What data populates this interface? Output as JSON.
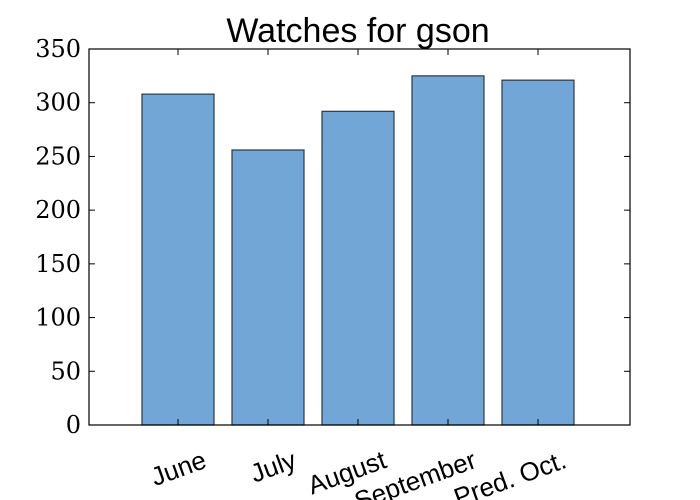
{
  "chart_data": {
    "type": "bar",
    "title": "Watches for gson",
    "xlabel": "",
    "ylabel": "",
    "categories": [
      "June",
      "July",
      "August",
      "September",
      "Pred. Oct."
    ],
    "values": [
      308,
      256,
      292,
      325,
      321
    ],
    "ylim": [
      0,
      350
    ],
    "yticks": [
      0,
      50,
      100,
      150,
      200,
      250,
      300,
      350
    ],
    "grid": false,
    "bar_color": "#72a6d6",
    "bar_edge_color": "#2b3a4a"
  }
}
